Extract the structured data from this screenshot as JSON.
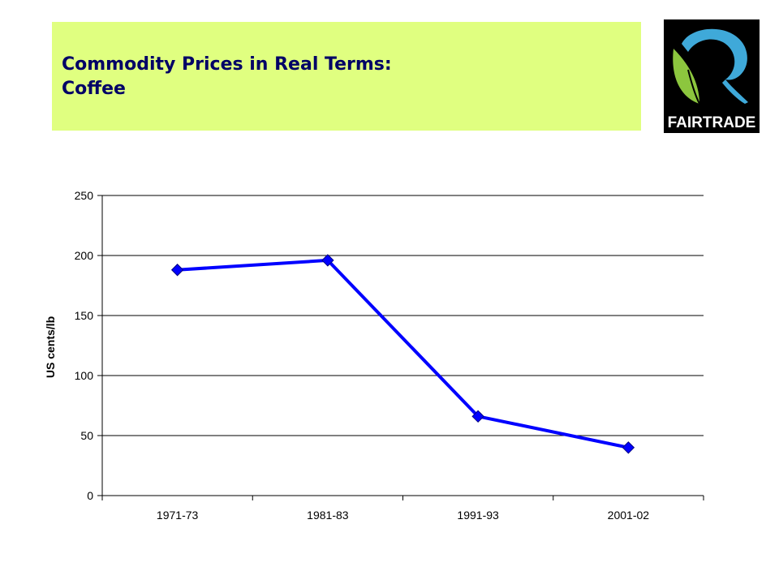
{
  "slide": {
    "title_line1": "Commodity Prices in Real Terms:",
    "title_line2": "Coffee",
    "logo_text": "FAIRTRADE"
  },
  "colors": {
    "banner": "#e0ff80",
    "title": "#000066",
    "series": "#0000ff",
    "logo_bg": "#000000",
    "logo_blue": "#3fa9d9",
    "logo_green": "#8cc63e"
  },
  "chart_data": {
    "type": "line",
    "categories": [
      "1971-73",
      "1981-83",
      "1991-93",
      "2001-02"
    ],
    "series": [
      {
        "values": [
          188,
          196,
          66,
          40
        ]
      }
    ],
    "ylabel": "US cents/lb",
    "ylim": [
      0,
      250
    ],
    "yticks": [
      0,
      50,
      100,
      150,
      200,
      250
    ],
    "grid": true,
    "legend": "none",
    "marker": "diamond"
  }
}
